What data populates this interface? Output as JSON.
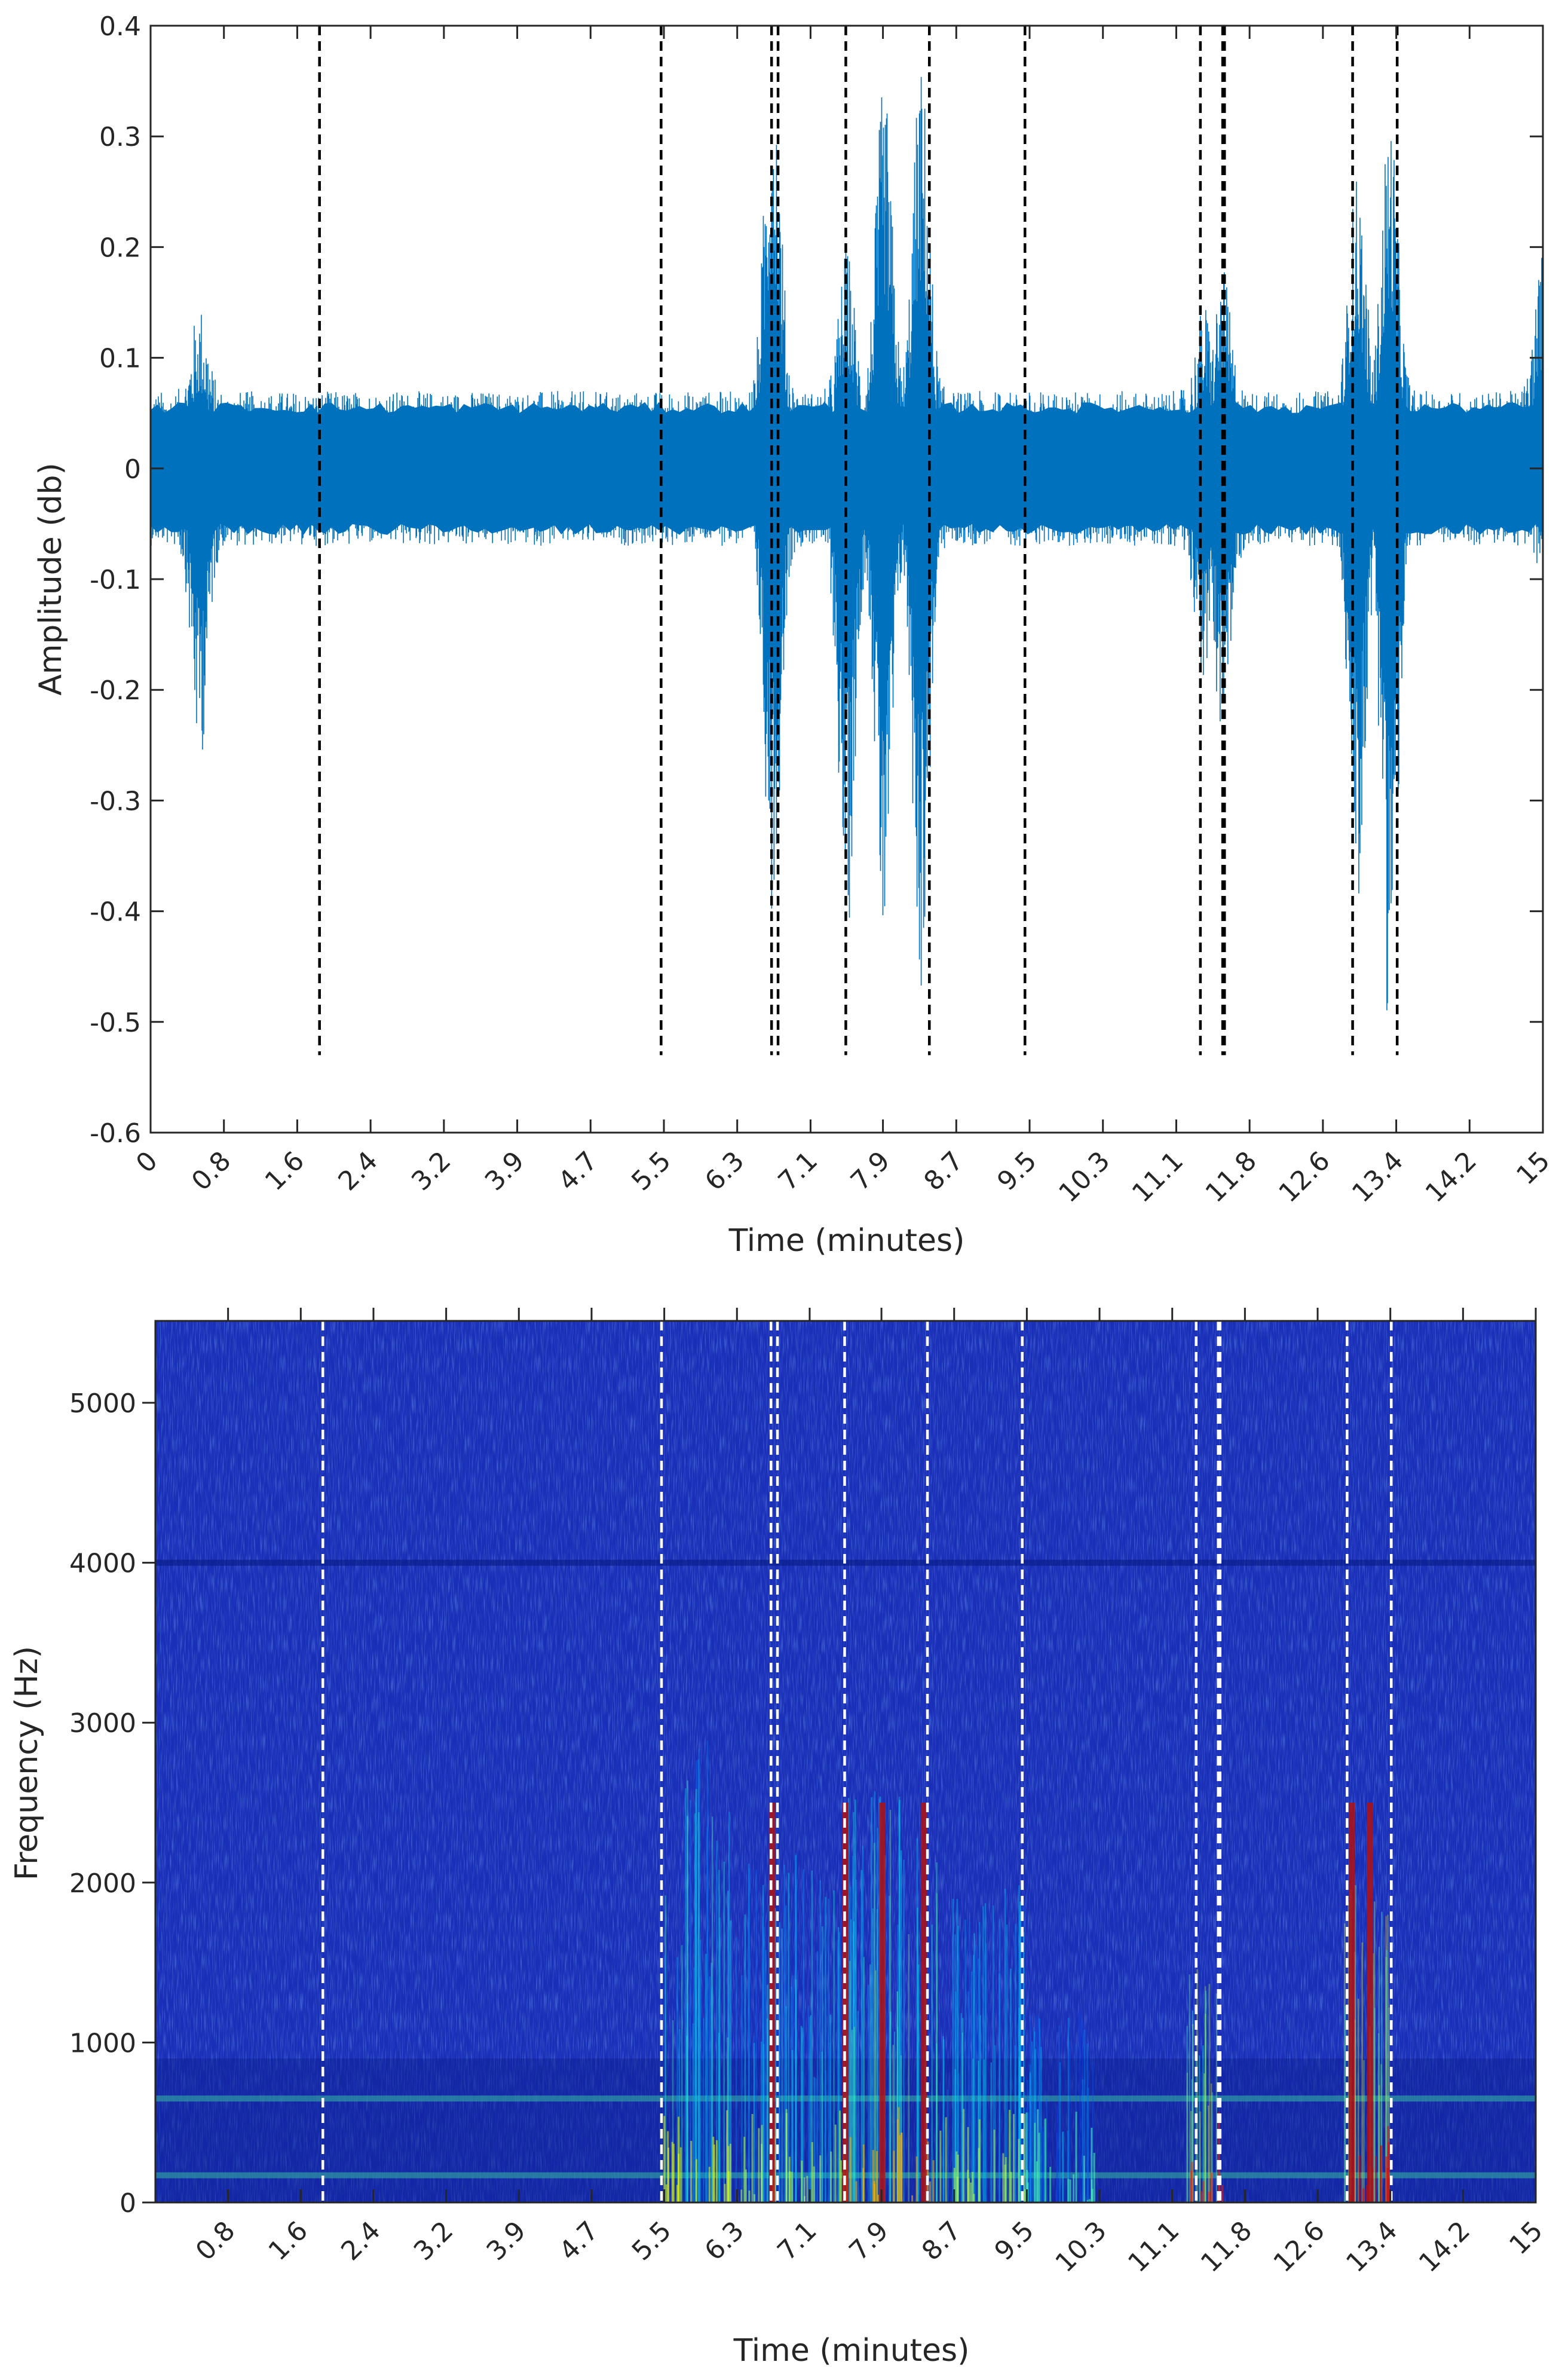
{
  "chart_data": [
    {
      "type": "line",
      "title": "",
      "xlabel": "Time (minutes)",
      "ylabel": "Amplitude (db)",
      "xlim": [
        0,
        15
      ],
      "ylim": [
        -0.6,
        0.4
      ],
      "x_tick_values": [
        0,
        0.79,
        1.58,
        2.37,
        3.16,
        3.95,
        4.74,
        5.53,
        6.32,
        7.11,
        7.89,
        8.68,
        9.47,
        10.26,
        11.05,
        11.84,
        12.63,
        13.42,
        14.21,
        15
      ],
      "x_tick_labels": [
        "0",
        "0.8",
        "1.6",
        "2.4",
        "3.2",
        "3.9",
        "4.7",
        "5.5",
        "6.3",
        "7.1",
        "7.9",
        "8.7",
        "9.5",
        "10.3",
        "11.1",
        "11.8",
        "12.6",
        "13.4",
        "14.2",
        "15"
      ],
      "y_tick_values": [
        -0.6,
        -0.5,
        -0.4,
        -0.3,
        -0.2,
        -0.1,
        0,
        0.1,
        0.2,
        0.3,
        0.4
      ],
      "y_tick_labels": [
        "-0.6",
        "-0.5",
        "-0.4",
        "-0.3",
        "-0.2",
        "-0.1",
        "0",
        "0.1",
        "0.2",
        "0.3",
        "0.4"
      ],
      "grid": false,
      "line_color": "#0072bd",
      "marker_color": "#000000",
      "event_markers_x": [
        1.82,
        5.5,
        6.69,
        6.76,
        7.49,
        8.39,
        9.42,
        11.31,
        11.55,
        11.57,
        12.95,
        13.43
      ],
      "event_markers_ymax": -0.53,
      "envelope": {
        "baseline_amplitude": 0.07,
        "max_positive": 0.39,
        "min_negative": -0.52,
        "bursts": [
          {
            "x": 0.53,
            "peak_negative": -0.27,
            "peak_positive": 0.15
          },
          {
            "x": 6.7,
            "peak_positive": 0.39,
            "peak_negative": -0.4
          },
          {
            "x": 7.5,
            "peak_positive": 0.2,
            "peak_negative": -0.43
          },
          {
            "x": 7.9,
            "peak_positive": 0.35,
            "peak_negative": -0.45
          },
          {
            "x": 8.3,
            "peak_positive": 0.37,
            "peak_negative": -0.48
          },
          {
            "x": 11.35,
            "peak_positive": 0.15,
            "peak_negative": -0.2
          },
          {
            "x": 11.55,
            "peak_positive": 0.18,
            "peak_negative": -0.25
          },
          {
            "x": 13.0,
            "peak_positive": 0.27,
            "peak_negative": -0.4
          },
          {
            "x": 13.35,
            "peak_positive": 0.33,
            "peak_negative": -0.52
          },
          {
            "x": 15.0,
            "peak_positive": 0.2,
            "peak_negative": -0.1
          }
        ]
      }
    },
    {
      "type": "heatmap",
      "title": "",
      "xlabel": "Time (minutes)",
      "ylabel": "Frequency (Hz)",
      "xlim": [
        0,
        15
      ],
      "ylim": [
        0,
        5512
      ],
      "x_tick_values": [
        0.79,
        1.58,
        2.37,
        3.16,
        3.95,
        4.74,
        5.53,
        6.32,
        7.11,
        7.89,
        8.68,
        9.47,
        10.26,
        11.05,
        11.84,
        12.63,
        13.42,
        14.21,
        15
      ],
      "x_tick_labels": [
        "0.8",
        "1.6",
        "2.4",
        "3.2",
        "3.9",
        "4.7",
        "5.5",
        "6.3",
        "7.1",
        "7.9",
        "8.7",
        "9.5",
        "10.3",
        "11.1",
        "11.8",
        "12.6",
        "13.4",
        "14.2",
        "15"
      ],
      "y_tick_values": [
        0,
        1000,
        2000,
        3000,
        4000,
        5000
      ],
      "y_tick_labels": [
        "0",
        "1000",
        "2000",
        "3000",
        "4000",
        "5000"
      ],
      "colormap": "jet",
      "background_color": "#1a2fb8",
      "marker_color": "#ffffff",
      "event_markers_x": [
        1.82,
        5.5,
        6.69,
        6.76,
        7.49,
        8.39,
        9.42,
        11.31,
        11.55,
        11.57,
        12.95,
        13.43
      ],
      "energy_regions": [
        {
          "t_start": 5.5,
          "t_end": 6.3,
          "f_max": 2900,
          "intensity": 0.6
        },
        {
          "t_start": 6.3,
          "t_end": 7.5,
          "f_max": 2200,
          "intensity": 0.55
        },
        {
          "t_start": 7.5,
          "t_end": 8.5,
          "f_max": 2600,
          "intensity": 0.7
        },
        {
          "t_start": 8.5,
          "t_end": 9.45,
          "f_max": 2000,
          "intensity": 0.55
        },
        {
          "t_start": 9.45,
          "t_end": 10.2,
          "f_max": 1200,
          "intensity": 0.45
        },
        {
          "t_start": 11.2,
          "t_end": 11.6,
          "f_max": 1600,
          "intensity": 0.85
        },
        {
          "t_start": 12.9,
          "t_end": 13.4,
          "f_max": 2000,
          "intensity": 0.9
        }
      ],
      "hot_lines_x": [
        6.7,
        7.5,
        7.9,
        8.35,
        13.0,
        13.2
      ],
      "hum_bands_hz": [
        170,
        650,
        4000
      ]
    }
  ]
}
